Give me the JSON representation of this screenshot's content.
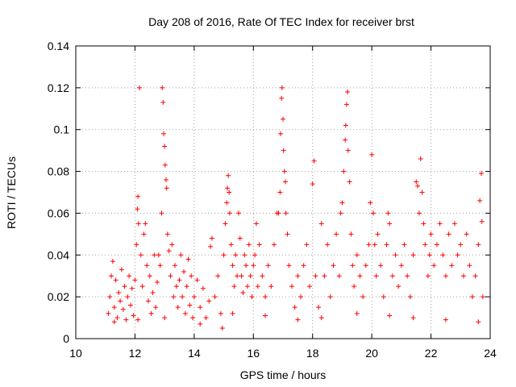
{
  "chart_data": {
    "type": "scatter",
    "title": "Day 208 of 2016, Rate Of TEC Index for receiver brst",
    "xlabel": "GPS time / hours",
    "ylabel": "ROTI / TECUs",
    "xlim": [
      10,
      24
    ],
    "ylim": [
      0,
      0.14
    ],
    "xticks": [
      "10",
      "12",
      "14",
      "16",
      "18",
      "20",
      "22",
      "24"
    ],
    "yticks": [
      "0",
      "0.02",
      "0.04",
      "0.06",
      "0.08",
      "0.1",
      "0.12",
      "0.14"
    ],
    "grid": true,
    "marker": "plus",
    "color": "#ff0000",
    "series": [
      {
        "name": "ROTI",
        "points": [
          [
            11.1,
            0.012
          ],
          [
            11.15,
            0.02
          ],
          [
            11.2,
            0.03
          ],
          [
            11.25,
            0.037
          ],
          [
            11.3,
            0.015
          ],
          [
            11.35,
            0.028
          ],
          [
            11.4,
            0.01
          ],
          [
            11.45,
            0.022
          ],
          [
            11.5,
            0.018
          ],
          [
            11.55,
            0.033
          ],
          [
            11.6,
            0.014
          ],
          [
            11.65,
            0.025
          ],
          [
            11.7,
            0.009
          ],
          [
            11.75,
            0.02
          ],
          [
            11.8,
            0.03
          ],
          [
            11.85,
            0.016
          ],
          [
            11.9,
            0.024
          ],
          [
            11.95,
            0.011
          ],
          [
            12.0,
            0.028
          ],
          [
            12.05,
            0.045
          ],
          [
            12.08,
            0.062
          ],
          [
            12.1,
            0.068
          ],
          [
            12.12,
            0.055
          ],
          [
            12.15,
            0.12
          ],
          [
            12.2,
            0.04
          ],
          [
            12.25,
            0.025
          ],
          [
            12.3,
            0.05
          ],
          [
            12.35,
            0.055
          ],
          [
            12.4,
            0.035
          ],
          [
            12.45,
            0.018
          ],
          [
            12.5,
            0.03
          ],
          [
            12.55,
            0.012
          ],
          [
            12.6,
            0.022
          ],
          [
            12.65,
            0.04
          ],
          [
            12.7,
            0.015
          ],
          [
            12.75,
            0.027
          ],
          [
            12.8,
            0.04
          ],
          [
            12.85,
            0.035
          ],
          [
            12.9,
            0.06
          ],
          [
            12.92,
            0.12
          ],
          [
            12.95,
            0.113
          ],
          [
            12.97,
            0.098
          ],
          [
            13.0,
            0.092
          ],
          [
            13.02,
            0.083
          ],
          [
            13.05,
            0.076
          ],
          [
            13.07,
            0.072
          ],
          [
            13.1,
            0.05
          ],
          [
            13.15,
            0.042
          ],
          [
            13.2,
            0.03
          ],
          [
            13.25,
            0.045
          ],
          [
            13.3,
            0.02
          ],
          [
            13.35,
            0.035
          ],
          [
            13.4,
            0.025
          ],
          [
            13.45,
            0.015
          ],
          [
            13.5,
            0.028
          ],
          [
            13.55,
            0.04
          ],
          [
            13.6,
            0.02
          ],
          [
            13.65,
            0.032
          ],
          [
            13.7,
            0.012
          ],
          [
            13.75,
            0.025
          ],
          [
            13.8,
            0.038
          ],
          [
            13.85,
            0.016
          ],
          [
            13.9,
            0.03
          ],
          [
            13.95,
            0.01
          ],
          [
            14.0,
            0.02
          ],
          [
            14.1,
            0.028
          ],
          [
            14.2,
            0.015
          ],
          [
            14.3,
            0.024
          ],
          [
            14.4,
            0.01
          ],
          [
            14.5,
            0.018
          ],
          [
            14.55,
            0.044
          ],
          [
            14.6,
            0.048
          ],
          [
            14.7,
            0.02
          ],
          [
            14.8,
            0.03
          ],
          [
            14.9,
            0.012
          ],
          [
            14.95,
            0.005
          ],
          [
            15.0,
            0.04
          ],
          [
            15.05,
            0.055
          ],
          [
            15.1,
            0.065
          ],
          [
            15.12,
            0.072
          ],
          [
            15.15,
            0.078
          ],
          [
            15.18,
            0.07
          ],
          [
            15.2,
            0.06
          ],
          [
            15.25,
            0.045
          ],
          [
            15.3,
            0.035
          ],
          [
            15.35,
            0.025
          ],
          [
            15.4,
            0.04
          ],
          [
            15.45,
            0.03
          ],
          [
            15.5,
            0.06
          ],
          [
            15.55,
            0.048
          ],
          [
            15.6,
            0.03
          ],
          [
            15.65,
            0.022
          ],
          [
            15.7,
            0.04
          ],
          [
            15.75,
            0.035
          ],
          [
            15.8,
            0.025
          ],
          [
            15.85,
            0.045
          ],
          [
            15.9,
            0.03
          ],
          [
            15.95,
            0.02
          ],
          [
            16.0,
            0.035
          ],
          [
            16.05,
            0.04
          ],
          [
            16.1,
            0.055
          ],
          [
            16.15,
            0.025
          ],
          [
            16.2,
            0.045
          ],
          [
            16.3,
            0.03
          ],
          [
            16.4,
            0.02
          ],
          [
            16.5,
            0.035
          ],
          [
            16.6,
            0.025
          ],
          [
            16.7,
            0.045
          ],
          [
            16.8,
            0.06
          ],
          [
            16.85,
            0.06
          ],
          [
            16.9,
            0.07
          ],
          [
            16.92,
            0.098
          ],
          [
            16.95,
            0.115
          ],
          [
            16.97,
            0.12
          ],
          [
            17.0,
            0.105
          ],
          [
            17.02,
            0.09
          ],
          [
            17.05,
            0.08
          ],
          [
            17.08,
            0.075
          ],
          [
            17.1,
            0.06
          ],
          [
            17.15,
            0.05
          ],
          [
            17.2,
            0.035
          ],
          [
            17.3,
            0.025
          ],
          [
            17.4,
            0.015
          ],
          [
            17.5,
            0.03
          ],
          [
            17.6,
            0.02
          ],
          [
            17.7,
            0.035
          ],
          [
            17.8,
            0.045
          ],
          [
            17.9,
            0.025
          ],
          [
            18.0,
            0.074
          ],
          [
            18.05,
            0.085
          ],
          [
            18.1,
            0.03
          ],
          [
            18.2,
            0.015
          ],
          [
            18.3,
            0.055
          ],
          [
            18.4,
            0.03
          ],
          [
            18.5,
            0.045
          ],
          [
            18.6,
            0.02
          ],
          [
            18.7,
            0.035
          ],
          [
            18.8,
            0.05
          ],
          [
            18.9,
            0.03
          ],
          [
            18.95,
            0.06
          ],
          [
            19.0,
            0.065
          ],
          [
            19.05,
            0.08
          ],
          [
            19.1,
            0.095
          ],
          [
            19.12,
            0.102
          ],
          [
            19.15,
            0.112
          ],
          [
            19.18,
            0.118
          ],
          [
            19.2,
            0.09
          ],
          [
            19.25,
            0.075
          ],
          [
            19.3,
            0.05
          ],
          [
            19.35,
            0.035
          ],
          [
            19.4,
            0.025
          ],
          [
            19.5,
            0.04
          ],
          [
            19.6,
            0.03
          ],
          [
            19.7,
            0.02
          ],
          [
            19.8,
            0.035
          ],
          [
            19.9,
            0.045
          ],
          [
            19.95,
            0.065
          ],
          [
            20.0,
            0.088
          ],
          [
            20.05,
            0.06
          ],
          [
            20.1,
            0.045
          ],
          [
            20.15,
            0.03
          ],
          [
            20.2,
            0.05
          ],
          [
            20.3,
            0.035
          ],
          [
            20.4,
            0.02
          ],
          [
            20.5,
            0.045
          ],
          [
            20.55,
            0.06
          ],
          [
            20.6,
            0.055
          ],
          [
            20.7,
            0.03
          ],
          [
            20.8,
            0.04
          ],
          [
            20.9,
            0.025
          ],
          [
            21.0,
            0.035
          ],
          [
            21.1,
            0.045
          ],
          [
            21.2,
            0.03
          ],
          [
            21.3,
            0.02
          ],
          [
            21.4,
            0.04
          ],
          [
            21.5,
            0.075
          ],
          [
            21.55,
            0.073
          ],
          [
            21.6,
            0.06
          ],
          [
            21.65,
            0.086
          ],
          [
            21.7,
            0.07
          ],
          [
            21.75,
            0.055
          ],
          [
            21.8,
            0.045
          ],
          [
            21.9,
            0.03
          ],
          [
            21.95,
            0.04
          ],
          [
            22.0,
            0.05
          ],
          [
            22.1,
            0.035
          ],
          [
            22.2,
            0.045
          ],
          [
            22.3,
            0.055
          ],
          [
            22.4,
            0.04
          ],
          [
            22.5,
            0.03
          ],
          [
            22.6,
            0.05
          ],
          [
            22.7,
            0.035
          ],
          [
            22.8,
            0.055
          ],
          [
            22.9,
            0.04
          ],
          [
            23.0,
            0.045
          ],
          [
            23.1,
            0.03
          ],
          [
            23.2,
            0.05
          ],
          [
            23.3,
            0.035
          ],
          [
            23.4,
            0.02
          ],
          [
            23.5,
            0.03
          ],
          [
            23.6,
            0.045
          ],
          [
            23.65,
            0.066
          ],
          [
            23.7,
            0.079
          ],
          [
            23.72,
            0.056
          ],
          [
            23.75,
            0.02
          ],
          [
            11.3,
            0.008
          ],
          [
            12.1,
            0.009
          ],
          [
            13.0,
            0.01
          ],
          [
            14.2,
            0.007
          ],
          [
            15.3,
            0.012
          ],
          [
            16.4,
            0.011
          ],
          [
            17.5,
            0.009
          ],
          [
            18.3,
            0.01
          ],
          [
            19.5,
            0.012
          ],
          [
            20.6,
            0.011
          ],
          [
            21.4,
            0.01
          ],
          [
            22.5,
            0.009
          ],
          [
            23.6,
            0.008
          ]
        ]
      }
    ]
  }
}
